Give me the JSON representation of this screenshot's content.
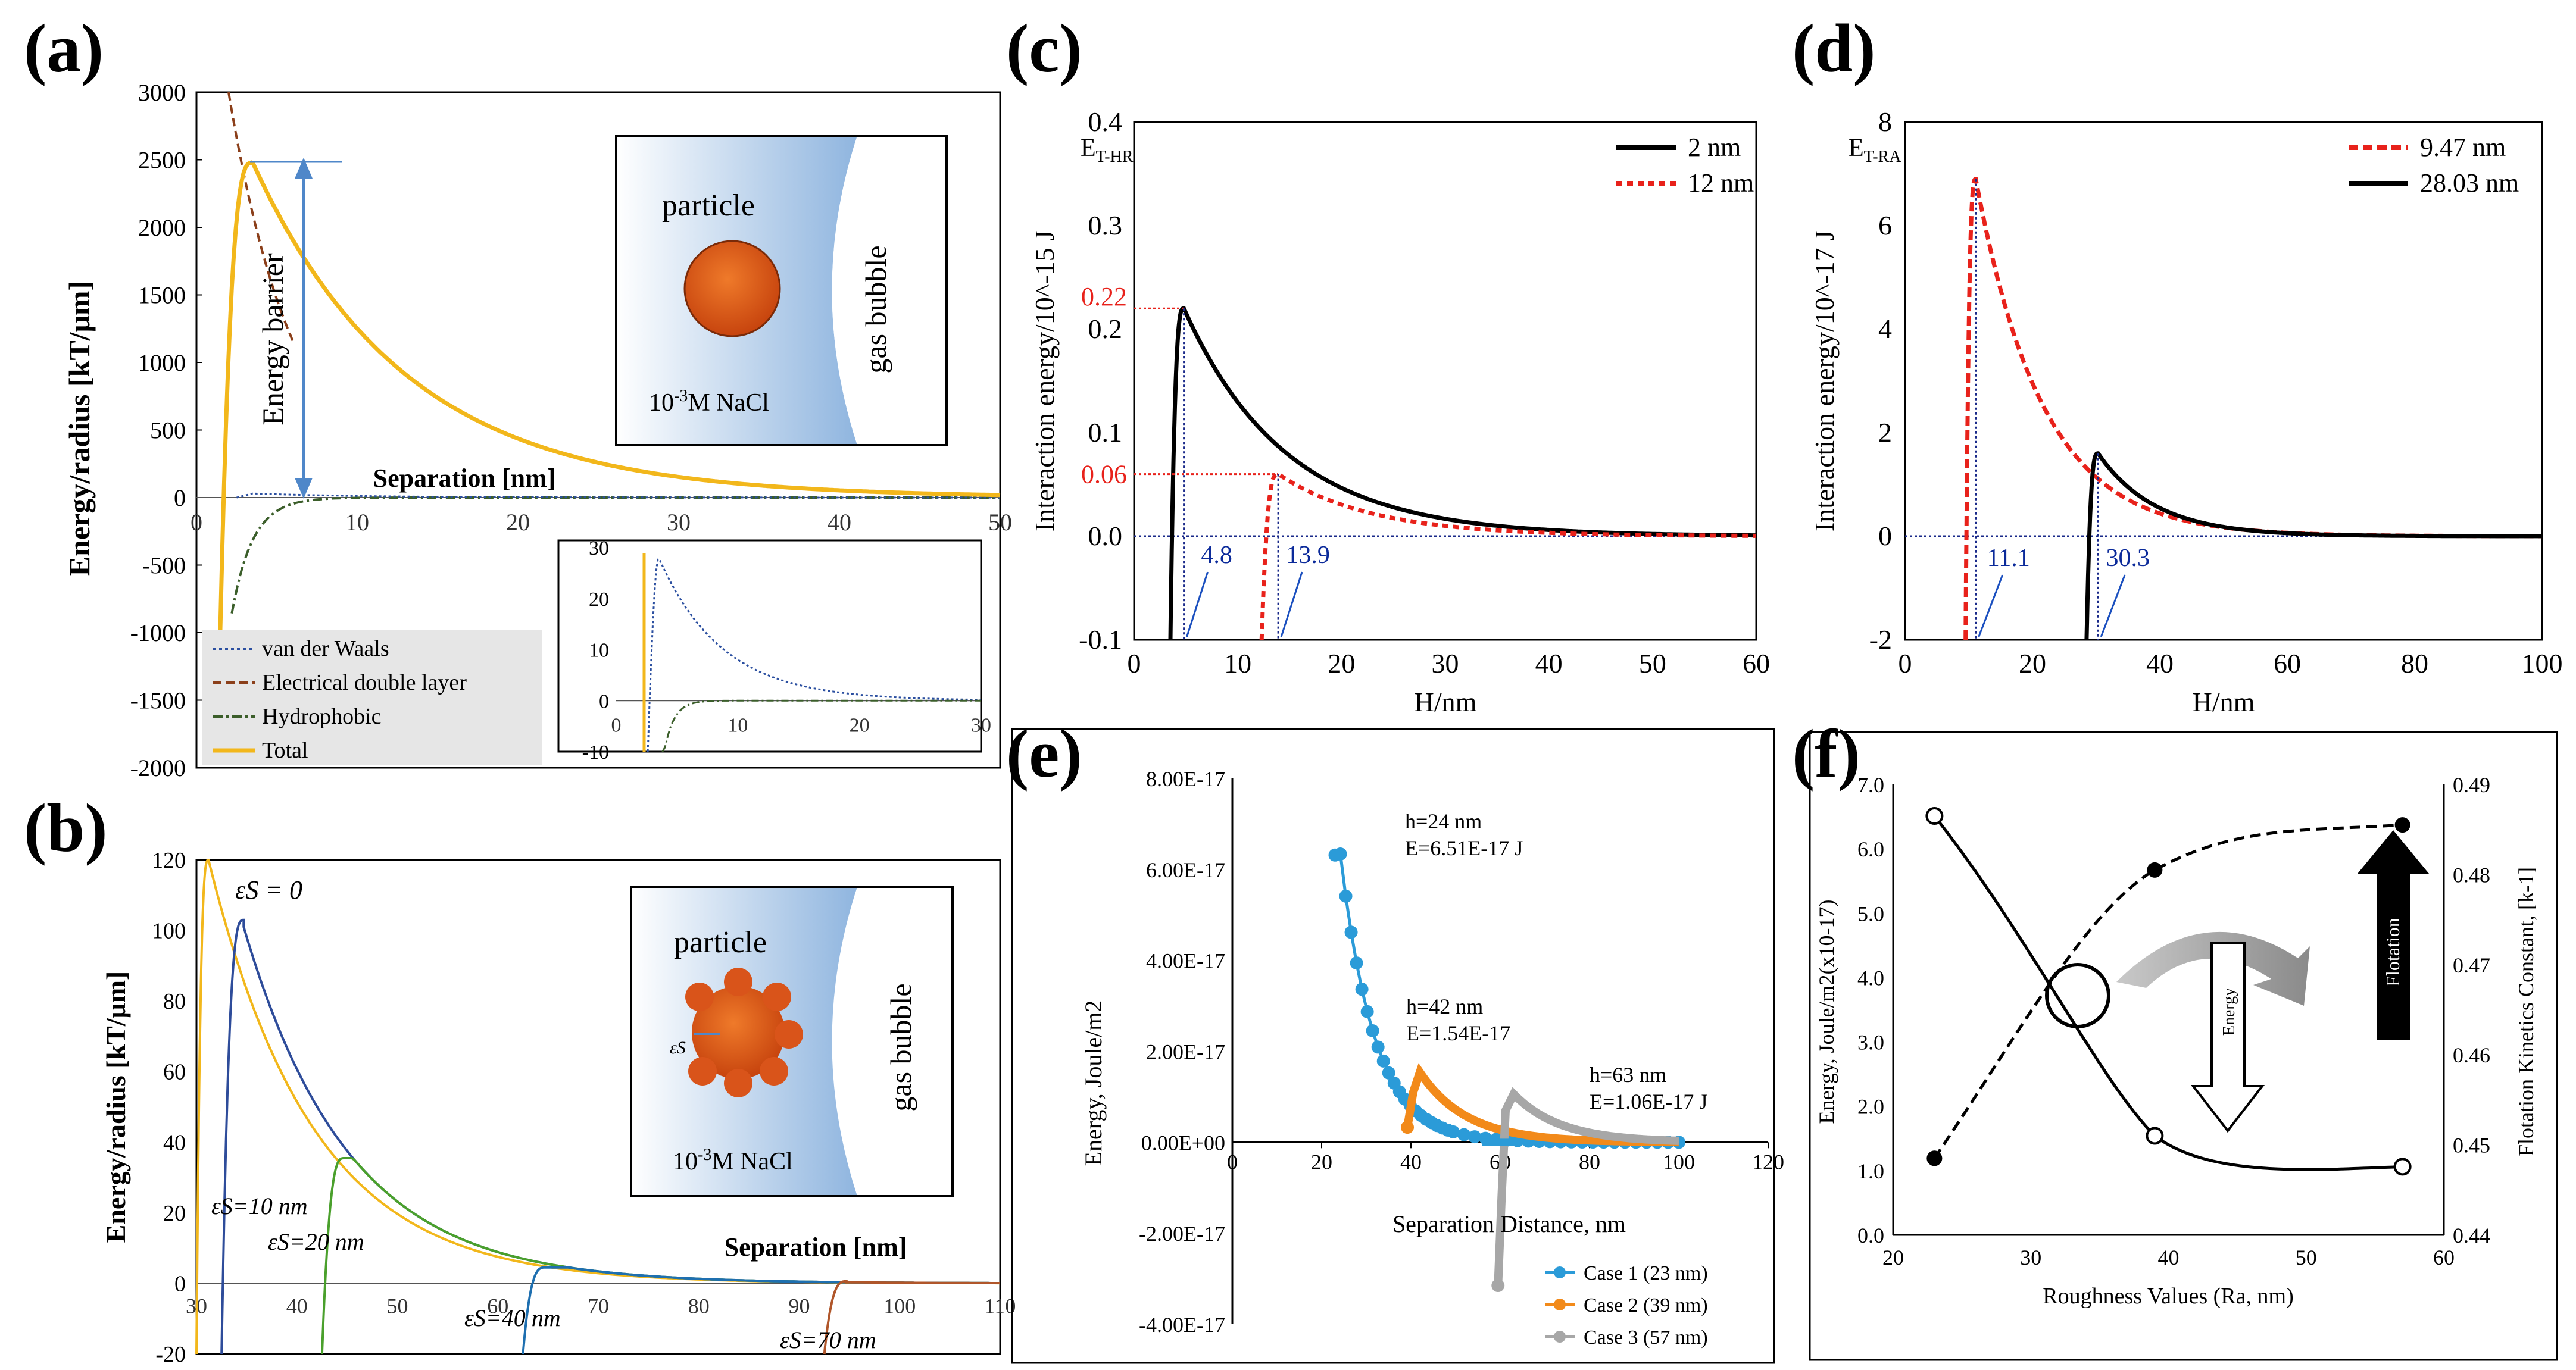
{
  "colors": {
    "gold": "#f2b71b",
    "black": "#000000",
    "red": "#e8221b",
    "blue_dotted": "#2b4fa0",
    "brown": "#8b3f1a",
    "green": "#3b5e2a",
    "tick_blue": "#0b2a9a",
    "case1": "#2b9bd8",
    "case2": "#f28a1a",
    "case3": "#a7a7a7",
    "bubble_blue": "#9dbfe3",
    "particle": "#d9541a"
  },
  "chart_data": [
    {
      "panel": "a",
      "type": "line",
      "panel_label": "(a)",
      "ylabel": "Energy/radius [kT/μm]",
      "xlabel": "Separation [nm]",
      "xlim": [
        0,
        50
      ],
      "ylim": [
        -2000,
        3000
      ],
      "xticks": [
        "0",
        "10",
        "20",
        "30",
        "40",
        "50"
      ],
      "yticks": [
        "-2000",
        "-1500",
        "-1000",
        "-500",
        "0",
        "500",
        "1000",
        "1500",
        "2000",
        "2500",
        "3000"
      ],
      "annotation": "Energy barrier",
      "barrier_value": 2480,
      "barrier_x": 3.5,
      "schematic": {
        "particle_label": "particle",
        "bubble_label": "gas bubble",
        "solution_label": "10-3M NaCl",
        "solution_sup": "-3"
      },
      "legend": [
        "van der Waals",
        "Electrical double layer",
        "Hydrophobic",
        "Total"
      ],
      "series": [
        {
          "name": "van der Waals",
          "style": "dotted",
          "color": "#2b4fa0",
          "formula": "vdw"
        },
        {
          "name": "Electrical double layer",
          "style": "dashed",
          "color": "#8b3f1a",
          "formula": "edl"
        },
        {
          "name": "Hydrophobic",
          "style": "dashdot",
          "color": "#3b5e2a",
          "formula": "hyd"
        },
        {
          "name": "Total",
          "style": "solid",
          "color": "#f2b71b",
          "formula": "total"
        }
      ],
      "inset": {
        "xlim": [
          0,
          30
        ],
        "ylim": [
          -10,
          30
        ],
        "xticks": [
          "0",
          "10",
          "20",
          "30"
        ],
        "yticks": [
          "-10",
          "0",
          "10",
          "20",
          "30"
        ],
        "peak": [
          3.5,
          28
        ]
      }
    },
    {
      "panel": "b",
      "type": "line",
      "panel_label": "(b)",
      "ylabel": "Energy/radius [kT/μm]",
      "xlabel": "Separation [nm]",
      "xlim": [
        30,
        110
      ],
      "ylim": [
        -20,
        120
      ],
      "xticks": [
        "30",
        "40",
        "50",
        "60",
        "70",
        "80",
        "90",
        "100",
        "110"
      ],
      "yticks": [
        "-20",
        "0",
        "20",
        "40",
        "60",
        "80",
        "100",
        "120"
      ],
      "series": [
        {
          "name": "εs = 0",
          "label": "εS = 0",
          "color": "#f2b71b",
          "start": 30,
          "peak": 120
        },
        {
          "name": "εs = 10 nm",
          "label": "εS=10 nm",
          "color": "#2e4c9a",
          "start": 32.5,
          "peak": 103
        },
        {
          "name": "εs = 20 nm",
          "label": "εS=20 nm",
          "color": "#4aa02c",
          "start": 42.5,
          "peak": 35.5
        },
        {
          "name": "εs = 40 nm",
          "label": "εS=40 nm",
          "color": "#1e6fb0",
          "start": 62.5,
          "peak": 4.5
        },
        {
          "name": "εs = 70 nm",
          "label": "εS=70 nm",
          "color": "#b0562a",
          "start": 92.5,
          "peak": 0.6
        }
      ],
      "schematic": {
        "particle_label": "particle",
        "bubble_label": "gas bubble",
        "solution_label": "10-3M NaCl",
        "eps_label": "εS"
      }
    },
    {
      "panel": "c",
      "type": "line",
      "panel_label": "(c)",
      "ylabel": "Interaction energy/10^-15 J",
      "xlabel": "H/nm",
      "corner_label": "ET-HR",
      "xlim": [
        0,
        60
      ],
      "ylim": [
        -0.1,
        0.4
      ],
      "xticks": [
        "0",
        "10",
        "20",
        "30",
        "40",
        "50",
        "60"
      ],
      "yticks": [
        "-0.1",
        "0.0",
        "0.1",
        "0.2",
        "0.3",
        "0.4"
      ],
      "series": [
        {
          "name": "2 nm",
          "style": "solid",
          "color": "#000000",
          "start": 3.5,
          "peak_x": 4.8,
          "peak_y": 0.22
        },
        {
          "name": "12 nm",
          "style": "dotted",
          "color": "#e8221b",
          "start": 12.3,
          "peak_x": 13.9,
          "peak_y": 0.06
        }
      ],
      "annotations": [
        "0.22",
        "0.06",
        "4.8",
        "13.9"
      ]
    },
    {
      "panel": "d",
      "type": "line",
      "panel_label": "(d)",
      "ylabel": "Interaction energy/10^-17 J",
      "xlabel": "H/nm",
      "corner_label": "ET-RA",
      "xlim": [
        0,
        100
      ],
      "ylim": [
        -2,
        8
      ],
      "xticks": [
        "0",
        "20",
        "40",
        "60",
        "80",
        "100"
      ],
      "yticks": [
        "-2",
        "0",
        "2",
        "4",
        "6",
        "8"
      ],
      "series": [
        {
          "name": "9.47 nm",
          "style": "dashed",
          "color": "#e8221b",
          "start": 9.5,
          "peak_x": 11.1,
          "peak_y": 6.9
        },
        {
          "name": "28.03 nm",
          "style": "solid",
          "color": "#000000",
          "start": 28.5,
          "peak_x": 30.3,
          "peak_y": 1.6
        }
      ],
      "annotations": [
        "11.1",
        "30.3"
      ]
    },
    {
      "panel": "e",
      "type": "scatter",
      "panel_label": "(e)",
      "ylabel": "Energy, Joule/m2",
      "xlabel": "Separation Distance, nm",
      "xlim": [
        0,
        120
      ],
      "ylim": [
        -4e-17,
        8e-17
      ],
      "xticks": [
        "0",
        "20",
        "40",
        "60",
        "80",
        "100",
        "120"
      ],
      "yticks": [
        "-4.00E-17",
        "-2.00E-17",
        "0.00E+00",
        "2.00E-17",
        "4.00E-17",
        "6.00E-17",
        "8.00E-17"
      ],
      "series": [
        {
          "name": "Case 1 (23 nm)",
          "color": "#2b9bd8",
          "peak_x": 24,
          "peak_y": 6.51e-17,
          "start": 23,
          "end": 100,
          "step": 1.2
        },
        {
          "name": "Case 2 (39 nm)",
          "color": "#f28a1a",
          "peak_x": 42,
          "peak_y": 1.54e-17,
          "start": 39,
          "end": 100,
          "step": 0.8
        },
        {
          "name": "Case 3 (57 nm)",
          "color": "#a7a7a7",
          "peak_x": 63,
          "peak_y": 1.06e-17,
          "start": 59.5,
          "end": 100,
          "step": 0.8
        }
      ],
      "annotations": [
        {
          "line1": "h=24 nm",
          "line2": "E=6.51E-17 J"
        },
        {
          "line1": "h=42 nm",
          "line2": "E=1.54E-17"
        },
        {
          "line1": "h=63 nm",
          "line2": "E=1.06E-17 J"
        }
      ]
    },
    {
      "panel": "f",
      "type": "line",
      "panel_label": "(f)",
      "ylabel": "Energy, Joule/m2(x10-17)",
      "y2label": "Flotation Kinetics Constant, [k-1]",
      "xlabel": "Roughness Values (Ra, nm)",
      "xlim": [
        20,
        60
      ],
      "ylim": [
        0,
        7
      ],
      "y2lim": [
        0.44,
        0.49
      ],
      "xticks": [
        "20",
        "30",
        "40",
        "50",
        "60"
      ],
      "yticks": [
        "0.0",
        "1.0",
        "2.0",
        "3.0",
        "4.0",
        "5.0",
        "6.0",
        "7.0"
      ],
      "y2ticks": [
        "0.44",
        "0.45",
        "0.46",
        "0.47",
        "0.48",
        "0.49"
      ],
      "series": [
        {
          "name": "Energy",
          "style": "solid",
          "marker": "open-circle",
          "x": [
            23,
            39,
            57
          ],
          "y": [
            6.51,
            1.54,
            1.06
          ]
        },
        {
          "name": "Flotation",
          "style": "dashed",
          "marker": "filled-circle",
          "axis": "right",
          "x": [
            23,
            39,
            57
          ],
          "y": [
            0.4485,
            0.4805,
            0.4855
          ]
        }
      ],
      "arrows": {
        "energy_label": "Energy",
        "flotation_label": "Flotation"
      }
    }
  ]
}
